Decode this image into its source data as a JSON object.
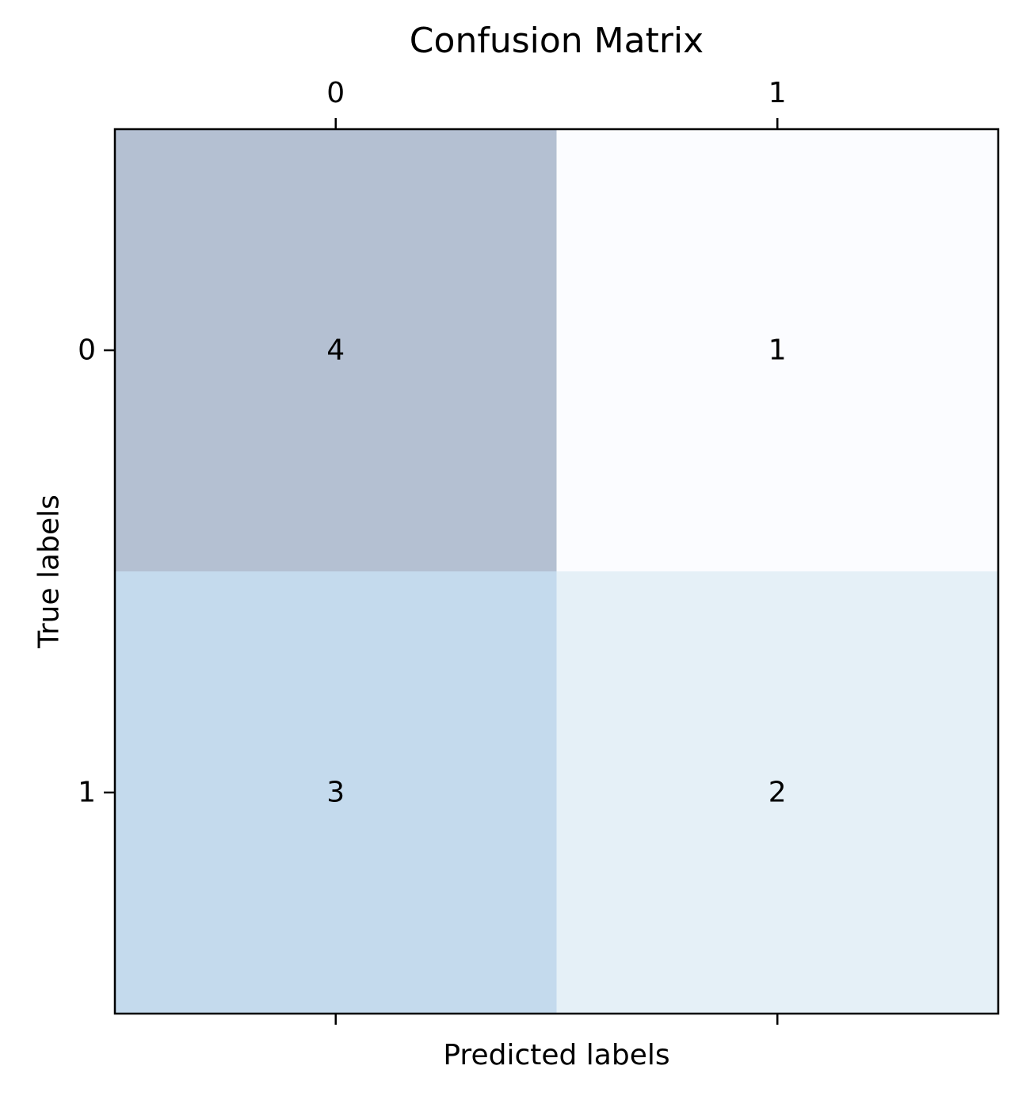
{
  "chart_data": {
    "type": "heatmap",
    "title": "Confusion Matrix",
    "xlabel": "Predicted labels",
    "ylabel": "True labels",
    "x_categories": [
      "0",
      "1"
    ],
    "y_categories": [
      "0",
      "1"
    ],
    "values": [
      [
        4,
        1
      ],
      [
        3,
        2
      ]
    ],
    "x_tick_position": "top",
    "colors": {
      "cells": [
        [
          "#b4c0d2",
          "#fbfcff"
        ],
        [
          "#c4daed",
          "#e5f0f7"
        ]
      ],
      "text": "#000000",
      "frame": "#000000"
    },
    "grid": false,
    "legend": "none"
  }
}
